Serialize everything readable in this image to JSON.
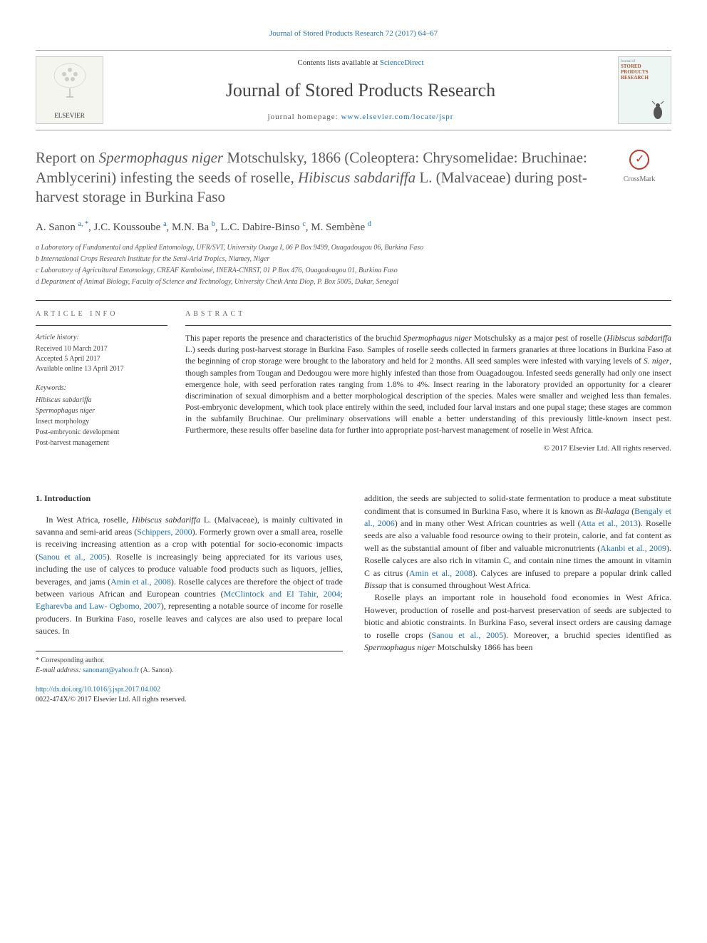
{
  "top_link": "Journal of Stored Products Research 72 (2017) 64–67",
  "header": {
    "publisher": "ELSEVIER",
    "contents_prefix": "Contents lists available at ",
    "contents_link": "ScienceDirect",
    "journal_name": "Journal of Stored Products Research",
    "homepage_prefix": "journal homepage: ",
    "homepage_url": "www.elsevier.com/locate/jspr",
    "cover_label": "STORED PRODUCTS RESEARCH"
  },
  "crossmark_label": "CrossMark",
  "title": "Report on <em>Spermophagus niger</em> Motschulsky, 1866 (Coleoptera: Chrysomelidae: Bruchinae: Amblycerini) infesting the seeds of roselle, <em>Hibiscus sabdariffa</em> L. (Malvaceae) during post-harvest storage in Burkina Faso",
  "authors_html": "A. Sanon <sup>a, *</sup>, J.C. Koussoube <sup>a</sup>, M.N. Ba <sup>b</sup>, L.C. Dabire-Binso <sup>c</sup>, M. Sembène <sup>d</sup>",
  "affiliations": [
    "a Laboratory of Fundamental and Applied Entomology, UFR/SVT, University Ouaga I, 06 P Box 9499, Ouagadougou 06, Burkina Faso",
    "b International Crops Research Institute for the Semi-Arid Tropics, Niamey, Niger",
    "c Laboratory of Agricultural Entomology, CREAF Kamboinsé, INERA-CNRST, 01 P Box 476, Ouagadougou 01, Burkina Faso",
    "d Department of Animal Biology, Faculty of Science and Technology, University Cheik Anta Diop, P. Box 5005, Dakar, Senegal"
  ],
  "article_info": {
    "heading": "ARTICLE INFO",
    "history_label": "Article history:",
    "history": [
      "Received 10 March 2017",
      "Accepted 5 April 2017",
      "Available online 13 April 2017"
    ],
    "keywords_label": "Keywords:",
    "keywords": [
      "Hibiscus sabdariffa",
      "Spermophagus niger",
      "Insect morphology",
      "Post-embryonic development",
      "Post-harvest management"
    ]
  },
  "abstract": {
    "heading": "ABSTRACT",
    "text": "This paper reports the presence and characteristics of the bruchid <em>Spermophagus niger</em> Motschulsky as a major pest of roselle (<em>Hibiscus sabdariffa</em> L.) seeds during post-harvest storage in Burkina Faso. Samples of roselle seeds collected in farmers granaries at three locations in Burkina Faso at the beginning of crop storage were brought to the laboratory and held for 2 months. All seed samples were infested with varying levels of <em>S. niger</em>, though samples from Tougan and Dedougou were more highly infested than those from Ouagadougou. Infested seeds generally had only one insect emergence hole, with seed perforation rates ranging from 1.8% to 4%. Insect rearing in the laboratory provided an opportunity for a clearer discrimination of sexual dimorphism and a better morphological description of the species. Males were smaller and weighed less than females. Post-embryonic development, which took place entirely within the seed, included four larval instars and one pupal stage; these stages are common in the subfamily Bruchinae. Our preliminary observations will enable a better understanding of this previously little-known insect pest. Furthermore, these results offer baseline data for further into appropriate post-harvest management of roselle in West Africa.",
    "copyright": "© 2017 Elsevier Ltd. All rights reserved."
  },
  "intro": {
    "heading": "1. Introduction",
    "col1_p1": "In West Africa, roselle, <em>Hibiscus sabdariffa</em> L. (Malvaceae), is mainly cultivated in savanna and semi-arid areas (<span class=\"cite\">Schippers, 2000</span>). Formerly grown over a small area, roselle is receiving increasing attention as a crop with potential for socio-economic impacts (<span class=\"cite\">Sanou et al., 2005</span>). Roselle is increasingly being appreciated for its various uses, including the use of calyces to produce valuable food products such as liquors, jellies, beverages, and jams (<span class=\"cite\">Amin et al., 2008</span>). Roselle calyces are therefore the object of trade between various African and European countries (<span class=\"cite\">McClintock and El Tahir, 2004; Egharevba and Law- Ogbomo, 2007</span>), representing a notable source of income for roselle producers. In Burkina Faso, roselle leaves and calyces are also used to prepare local sauces. In",
    "col2_p1": "addition, the seeds are subjected to solid-state fermentation to produce a meat substitute condiment that is consumed in Burkina Faso, where it is known as <em>Bi-kalaga</em> (<span class=\"cite\">Bengaly et al., 2006</span>) and in many other West African countries as well (<span class=\"cite\">Atta et al., 2013</span>). Roselle seeds are also a valuable food resource owing to their protein, calorie, and fat content as well as the substantial amount of fiber and valuable micronutrients (<span class=\"cite\">Akanbi et al., 2009</span>). Roselle calyces are also rich in vitamin C, and contain nine times the amount in vitamin C as citrus (<span class=\"cite\">Amin et al., 2008</span>). Calyces are infused to prepare a popular drink called <em>Bissap</em> that is consumed throughout West Africa.",
    "col2_p2": "Roselle plays an important role in household food economies in West Africa. However, production of roselle and post-harvest preservation of seeds are subjected to biotic and abiotic constraints. In Burkina Faso, several insect orders are causing damage to roselle crops (<span class=\"cite\">Sanou et al., 2005</span>). Moreover, a bruchid species identified as <em>Spermophagus niger</em> Motschulsky 1866 has been"
  },
  "footnotes": {
    "corresponding": "* Corresponding author.",
    "email_label": "E-mail address: ",
    "email": "sanonant@yahoo.fr",
    "email_suffix": " (A. Sanon)."
  },
  "doi": {
    "url": "http://dx.doi.org/10.1016/j.jspr.2017.04.002",
    "issn_line": "0022-474X/© 2017 Elsevier Ltd. All rights reserved."
  },
  "colors": {
    "link": "#1a6fb5",
    "text": "#333333",
    "heading_gray": "#5a5a5a"
  }
}
